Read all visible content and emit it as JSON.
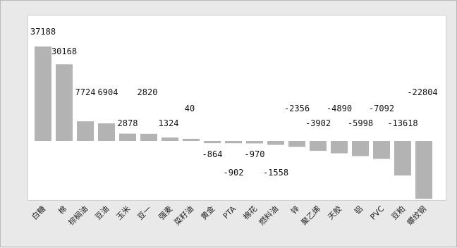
{
  "chart_data": {
    "type": "bar",
    "categories": [
      "白糖",
      "棉",
      "棕榈油",
      "豆油",
      "玉米",
      "豆一",
      "强麦",
      "菜籽油",
      "黄金",
      "PTA",
      "棉花",
      "燃料油",
      "锌",
      "聚乙烯",
      "天胶",
      "铝",
      "PVC",
      "豆粕",
      "螺纹钢"
    ],
    "values": [
      37188,
      30168,
      7724,
      6904,
      2878,
      2820,
      1324,
      40,
      -864,
      -902,
      -970,
      -1558,
      -2356,
      -3902,
      -4890,
      -5998,
      -7092,
      -13618,
      -22804
    ],
    "ylim": [
      -24000,
      38000
    ],
    "grid": false,
    "legend": "none",
    "colors": {
      "bar": "#b3b3b3",
      "plot_bg": "#ffffff",
      "frame_bg": "#e9e9e9"
    }
  }
}
